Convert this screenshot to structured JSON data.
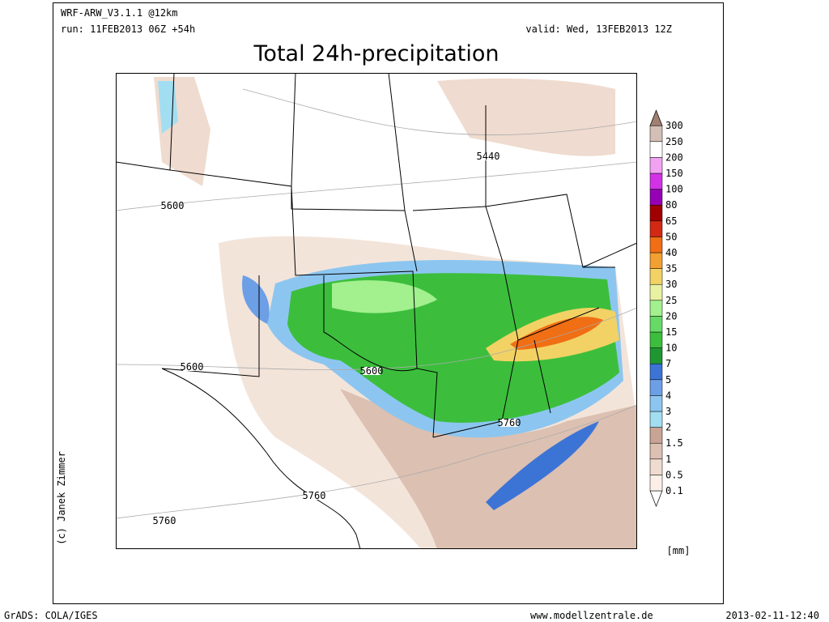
{
  "header": {
    "model": "WRF-ARW_V3.1.1 @12km",
    "run": "run: 11FEB2013 06Z +54h",
    "valid": "valid: Wed, 13FEB2013 12Z",
    "title": "Total 24h-precipitation"
  },
  "legend": {
    "unit": "[mm]",
    "under_color": "#ffffff",
    "levels": [
      {
        "label": "0.1",
        "color": "#fbefe8"
      },
      {
        "label": "0.5",
        "color": "#efdbcf"
      },
      {
        "label": "1",
        "color": "#dcc0b1"
      },
      {
        "label": "1.5",
        "color": "#c8a494"
      },
      {
        "label": "2",
        "color": "#a2def2"
      },
      {
        "label": "3",
        "color": "#8cc6f0"
      },
      {
        "label": "4",
        "color": "#6c9fe6"
      },
      {
        "label": "5",
        "color": "#3c74d6"
      },
      {
        "label": "7",
        "color": "#1e9632"
      },
      {
        "label": "10",
        "color": "#3cbe3c"
      },
      {
        "label": "15",
        "color": "#66d966"
      },
      {
        "label": "20",
        "color": "#a2f08e"
      },
      {
        "label": "25",
        "color": "#e8f2a2"
      },
      {
        "label": "30",
        "color": "#f2d264"
      },
      {
        "label": "35",
        "color": "#f2a032"
      },
      {
        "label": "40",
        "color": "#f06e14"
      },
      {
        "label": "50",
        "color": "#d22814"
      },
      {
        "label": "65",
        "color": "#a00000"
      },
      {
        "label": "80",
        "color": "#9600b4"
      },
      {
        "label": "100",
        "color": "#d232e6"
      },
      {
        "label": "150",
        "color": "#f2a2f2"
      },
      {
        "label": "200",
        "color": "#ffffff"
      },
      {
        "label": "250",
        "color": "#d4bfb6"
      },
      {
        "label": "300",
        "color": "#a08072"
      }
    ]
  },
  "map": {
    "contour_labels": [
      "5440",
      "5600",
      "5600",
      "5600",
      "5760",
      "5760",
      "5760"
    ]
  },
  "credit": "(c) Janek Zimmer",
  "footer": {
    "left": "GrADS: COLA/IGES",
    "center": "www.modellzentrale.de",
    "right": "2013-02-11-12:40"
  }
}
